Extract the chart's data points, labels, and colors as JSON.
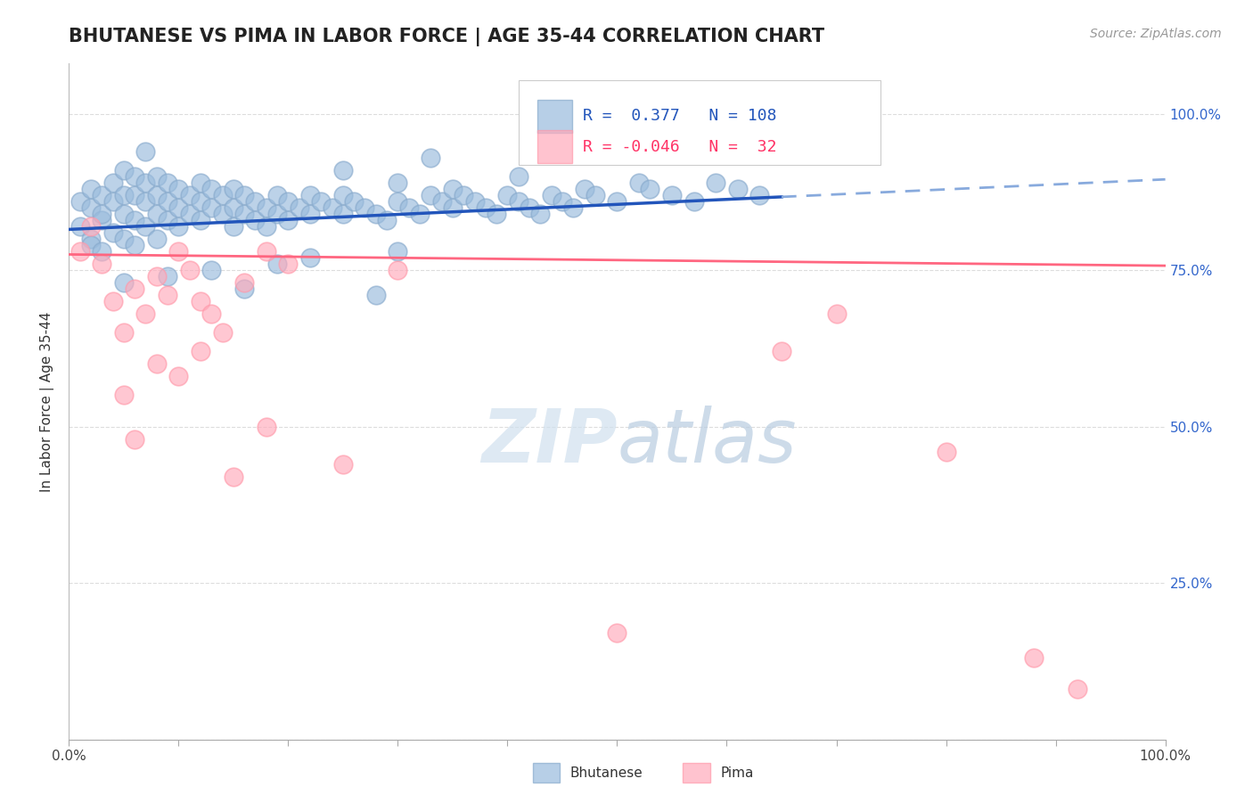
{
  "title": "BHUTANESE VS PIMA IN LABOR FORCE | AGE 35-44 CORRELATION CHART",
  "source_text": "Source: ZipAtlas.com",
  "ylabel": "In Labor Force | Age 35-44",
  "xlim": [
    0.0,
    1.0
  ],
  "ylim": [
    0.0,
    1.08
  ],
  "xtick_positions": [
    0.0,
    0.1,
    0.2,
    0.3,
    0.4,
    0.5,
    0.6,
    0.7,
    0.8,
    0.9,
    1.0
  ],
  "xtick_labels_sparse": {
    "0.0": "0.0%",
    "1.0": "100.0%"
  },
  "ytick_vals": [
    0.0,
    0.25,
    0.5,
    0.75,
    1.0
  ],
  "ytick_labels_right": [
    "",
    "25.0%",
    "50.0%",
    "75.0%",
    "100.0%"
  ],
  "bhutanese_R": 0.377,
  "bhutanese_N": 108,
  "pima_R": -0.046,
  "pima_N": 32,
  "blue_dot_color": "#99BBDD",
  "blue_dot_edge": "#88AACC",
  "pink_dot_color": "#FFAABB",
  "pink_dot_edge": "#FF99AA",
  "blue_line_color": "#2255BB",
  "pink_line_color": "#FF6680",
  "blue_dash_color": "#88AADD",
  "grid_color": "#DDDDDD",
  "watermark_zip": "ZIP",
  "watermark_atlas": "atlas",
  "watermark_color_zip": "#CCDDE8",
  "watermark_color_atlas": "#AABBCC",
  "background_color": "#FFFFFF",
  "blue_scatter_x": [
    0.01,
    0.01,
    0.02,
    0.02,
    0.02,
    0.02,
    0.03,
    0.03,
    0.03,
    0.03,
    0.04,
    0.04,
    0.04,
    0.05,
    0.05,
    0.05,
    0.05,
    0.06,
    0.06,
    0.06,
    0.06,
    0.07,
    0.07,
    0.07,
    0.08,
    0.08,
    0.08,
    0.08,
    0.09,
    0.09,
    0.09,
    0.1,
    0.1,
    0.1,
    0.11,
    0.11,
    0.12,
    0.12,
    0.12,
    0.13,
    0.13,
    0.14,
    0.14,
    0.15,
    0.15,
    0.15,
    0.16,
    0.16,
    0.17,
    0.17,
    0.18,
    0.18,
    0.19,
    0.19,
    0.2,
    0.2,
    0.21,
    0.22,
    0.22,
    0.23,
    0.24,
    0.25,
    0.25,
    0.26,
    0.27,
    0.28,
    0.29,
    0.3,
    0.3,
    0.31,
    0.32,
    0.33,
    0.34,
    0.35,
    0.35,
    0.36,
    0.37,
    0.38,
    0.39,
    0.4,
    0.41,
    0.42,
    0.43,
    0.44,
    0.45,
    0.46,
    0.47,
    0.48,
    0.5,
    0.52,
    0.53,
    0.55,
    0.57,
    0.59,
    0.61,
    0.63,
    0.07,
    0.25,
    0.33,
    0.41,
    0.3,
    0.19,
    0.13,
    0.22,
    0.09,
    0.05,
    0.16,
    0.28
  ],
  "blue_scatter_y": [
    0.82,
    0.86,
    0.8,
    0.85,
    0.88,
    0.79,
    0.83,
    0.78,
    0.87,
    0.84,
    0.81,
    0.86,
    0.89,
    0.8,
    0.84,
    0.87,
    0.91,
    0.79,
    0.83,
    0.87,
    0.9,
    0.82,
    0.86,
    0.89,
    0.8,
    0.84,
    0.87,
    0.9,
    0.83,
    0.86,
    0.89,
    0.82,
    0.85,
    0.88,
    0.84,
    0.87,
    0.83,
    0.86,
    0.89,
    0.85,
    0.88,
    0.84,
    0.87,
    0.82,
    0.85,
    0.88,
    0.84,
    0.87,
    0.83,
    0.86,
    0.82,
    0.85,
    0.84,
    0.87,
    0.83,
    0.86,
    0.85,
    0.84,
    0.87,
    0.86,
    0.85,
    0.84,
    0.87,
    0.86,
    0.85,
    0.84,
    0.83,
    0.86,
    0.89,
    0.85,
    0.84,
    0.87,
    0.86,
    0.85,
    0.88,
    0.87,
    0.86,
    0.85,
    0.84,
    0.87,
    0.86,
    0.85,
    0.84,
    0.87,
    0.86,
    0.85,
    0.88,
    0.87,
    0.86,
    0.89,
    0.88,
    0.87,
    0.86,
    0.89,
    0.88,
    0.87,
    0.94,
    0.91,
    0.93,
    0.9,
    0.78,
    0.76,
    0.75,
    0.77,
    0.74,
    0.73,
    0.72,
    0.71
  ],
  "pink_scatter_x": [
    0.01,
    0.02,
    0.03,
    0.04,
    0.05,
    0.06,
    0.07,
    0.08,
    0.09,
    0.1,
    0.11,
    0.12,
    0.13,
    0.14,
    0.16,
    0.18,
    0.2,
    0.3,
    0.5,
    0.12,
    0.08,
    0.05,
    0.15,
    0.25,
    0.1,
    0.18,
    0.06,
    0.65,
    0.7,
    0.8,
    0.88,
    0.92
  ],
  "pink_scatter_y": [
    0.78,
    0.82,
    0.76,
    0.7,
    0.65,
    0.72,
    0.68,
    0.74,
    0.71,
    0.78,
    0.75,
    0.7,
    0.68,
    0.65,
    0.73,
    0.78,
    0.76,
    0.75,
    0.17,
    0.62,
    0.6,
    0.55,
    0.42,
    0.44,
    0.58,
    0.5,
    0.48,
    0.62,
    0.68,
    0.46,
    0.13,
    0.08
  ],
  "blue_trend_intercept": 0.815,
  "blue_trend_slope": 0.08,
  "pink_trend_intercept": 0.775,
  "pink_trend_slope": -0.018
}
